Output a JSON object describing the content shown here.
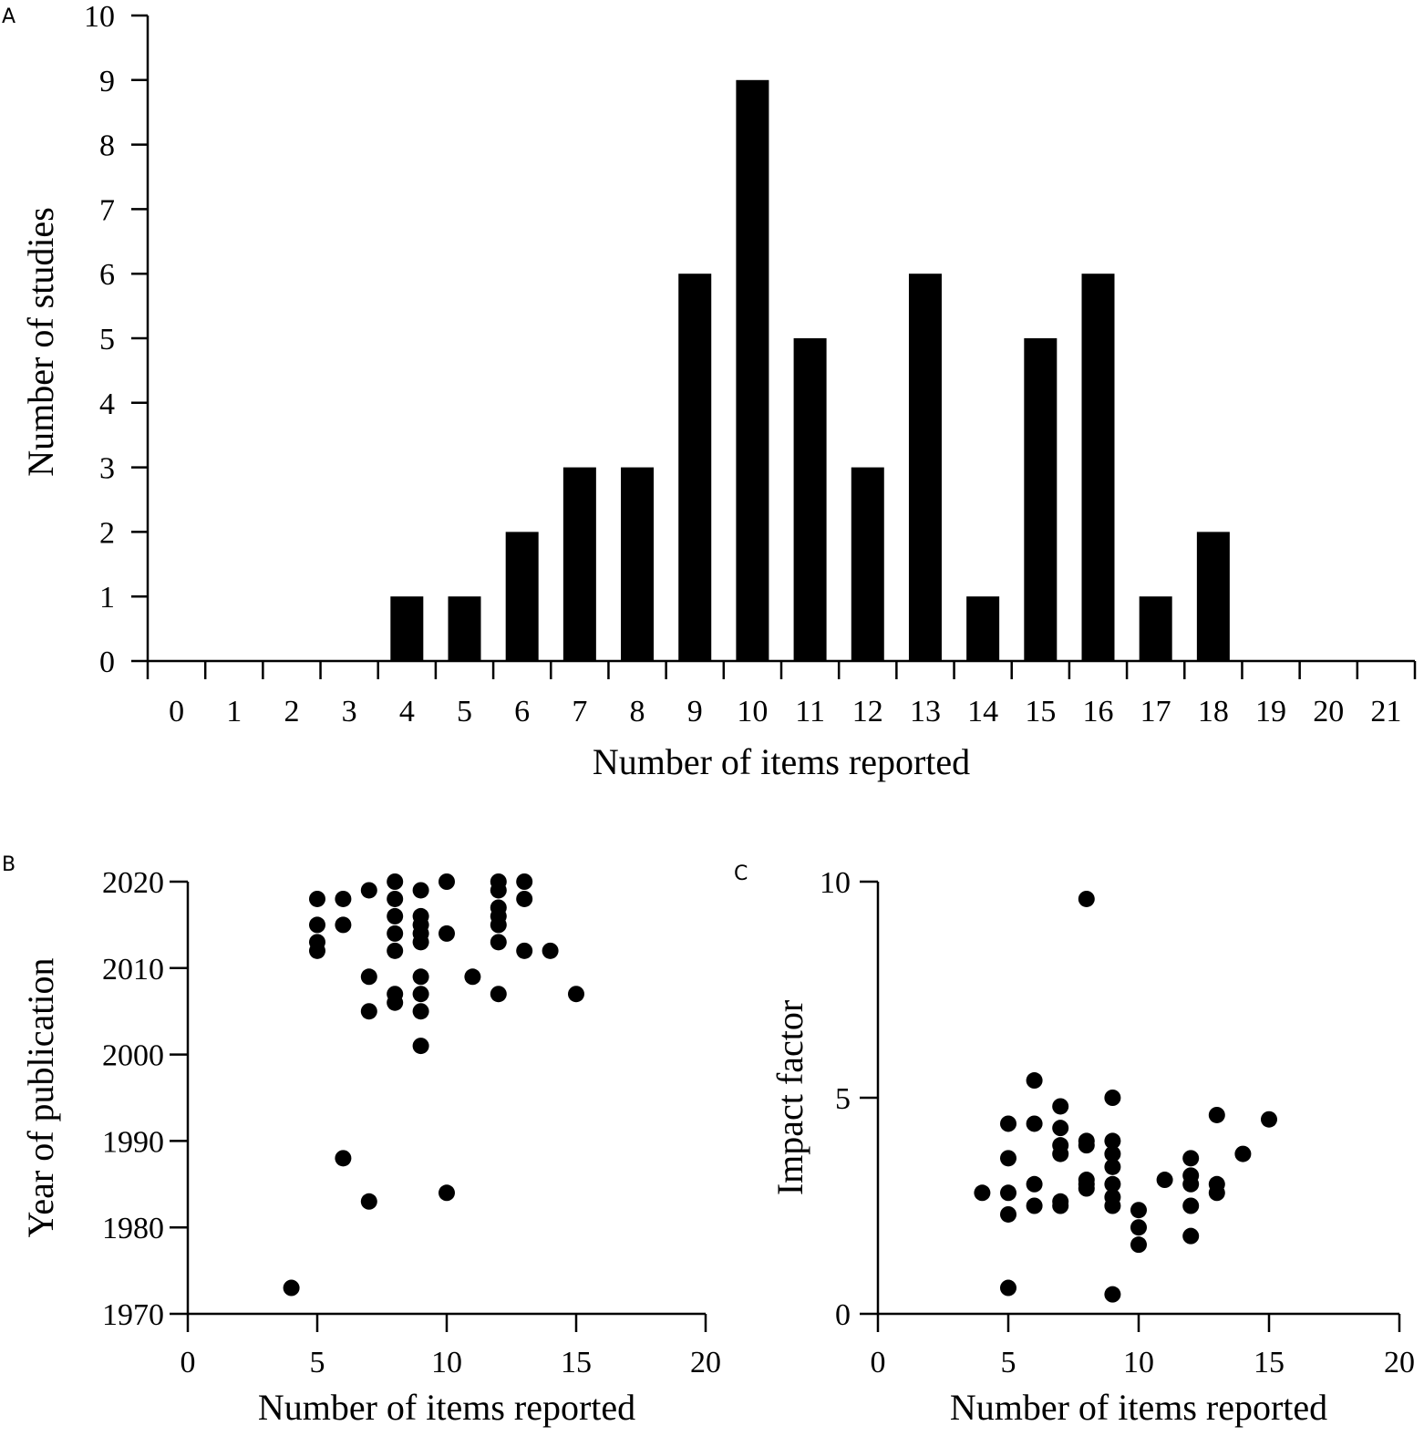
{
  "figure": {
    "panel_labels": [
      "A",
      "B",
      "C"
    ]
  },
  "chart_data": [
    {
      "id": "A",
      "type": "bar",
      "xlabel": "Number of items reported",
      "ylabel": "Number of studies",
      "categories": [
        "0",
        "1",
        "2",
        "3",
        "4",
        "5",
        "6",
        "7",
        "8",
        "9",
        "10",
        "11",
        "12",
        "13",
        "14",
        "15",
        "16",
        "17",
        "18",
        "19",
        "20",
        "21"
      ],
      "values": [
        0,
        0,
        0,
        0,
        1,
        1,
        2,
        3,
        3,
        6,
        9,
        5,
        3,
        6,
        1,
        5,
        6,
        1,
        2,
        0,
        0,
        0
      ],
      "ylim": [
        0,
        10
      ],
      "yticks": [
        0,
        1,
        2,
        3,
        4,
        5,
        6,
        7,
        8,
        9,
        10
      ],
      "color": "#000000",
      "grid": false
    },
    {
      "id": "B",
      "type": "scatter",
      "xlabel": "Number of items reported",
      "ylabel": "Year of publication",
      "xlim": [
        0,
        20
      ],
      "ylim": [
        1970,
        2020
      ],
      "xticks": [
        0,
        5,
        10,
        15,
        20
      ],
      "yticks": [
        1970,
        1980,
        1990,
        2000,
        2010,
        2020
      ],
      "color": "#000000",
      "grid": false,
      "points": [
        [
          4,
          1973
        ],
        [
          5,
          2018
        ],
        [
          5,
          2015
        ],
        [
          5,
          2013
        ],
        [
          5,
          2012
        ],
        [
          6,
          2018
        ],
        [
          6,
          2015
        ],
        [
          6,
          1988
        ],
        [
          7,
          2019
        ],
        [
          7,
          2009
        ],
        [
          7,
          2005
        ],
        [
          7,
          1983
        ],
        [
          8,
          2020
        ],
        [
          8,
          2018
        ],
        [
          8,
          2016
        ],
        [
          8,
          2014
        ],
        [
          8,
          2012
        ],
        [
          8,
          2007
        ],
        [
          8,
          2006
        ],
        [
          9,
          2019
        ],
        [
          9,
          2016
        ],
        [
          9,
          2015
        ],
        [
          9,
          2014
        ],
        [
          9,
          2013
        ],
        [
          9,
          2009
        ],
        [
          9,
          2007
        ],
        [
          9,
          2005
        ],
        [
          9,
          2001
        ],
        [
          10,
          2020
        ],
        [
          10,
          2014
        ],
        [
          10,
          1984
        ],
        [
          11,
          2009
        ],
        [
          12,
          2020
        ],
        [
          12,
          2019
        ],
        [
          12,
          2017
        ],
        [
          12,
          2016
        ],
        [
          12,
          2015
        ],
        [
          12,
          2013
        ],
        [
          12,
          2007
        ],
        [
          13,
          2020
        ],
        [
          13,
          2018
        ],
        [
          13,
          2012
        ],
        [
          14,
          2012
        ],
        [
          15,
          2007
        ]
      ]
    },
    {
      "id": "C",
      "type": "scatter",
      "xlabel": "Number of items reported",
      "ylabel": "Impact factor",
      "xlim": [
        0,
        20
      ],
      "ylim": [
        0,
        10
      ],
      "xticks": [
        0,
        5,
        10,
        15,
        20
      ],
      "yticks": [
        0,
        5,
        10
      ],
      "color": "#000000",
      "grid": false,
      "points": [
        [
          4,
          2.8
        ],
        [
          5,
          4.4
        ],
        [
          5,
          3.6
        ],
        [
          5,
          2.8
        ],
        [
          5,
          2.3
        ],
        [
          5,
          0.6
        ],
        [
          6,
          5.4
        ],
        [
          6,
          4.4
        ],
        [
          6,
          3.0
        ],
        [
          6,
          2.5
        ],
        [
          7,
          4.8
        ],
        [
          7,
          4.3
        ],
        [
          7,
          3.9
        ],
        [
          7,
          3.7
        ],
        [
          7,
          2.6
        ],
        [
          7,
          2.5
        ],
        [
          8,
          9.6
        ],
        [
          8,
          4.0
        ],
        [
          8,
          3.9
        ],
        [
          8,
          3.1
        ],
        [
          8,
          3.0
        ],
        [
          8,
          2.9
        ],
        [
          9,
          5.0
        ],
        [
          9,
          4.0
        ],
        [
          9,
          3.7
        ],
        [
          9,
          3.4
        ],
        [
          9,
          3.0
        ],
        [
          9,
          2.7
        ],
        [
          9,
          2.5
        ],
        [
          9,
          0.45
        ],
        [
          10,
          2.4
        ],
        [
          10,
          2.0
        ],
        [
          10,
          1.6
        ],
        [
          11,
          3.1
        ],
        [
          12,
          3.6
        ],
        [
          12,
          3.2
        ],
        [
          12,
          3.0
        ],
        [
          12,
          2.5
        ],
        [
          12,
          1.8
        ],
        [
          13,
          4.6
        ],
        [
          13,
          3.0
        ],
        [
          13,
          2.8
        ],
        [
          14,
          3.7
        ],
        [
          15,
          4.5
        ]
      ]
    }
  ]
}
